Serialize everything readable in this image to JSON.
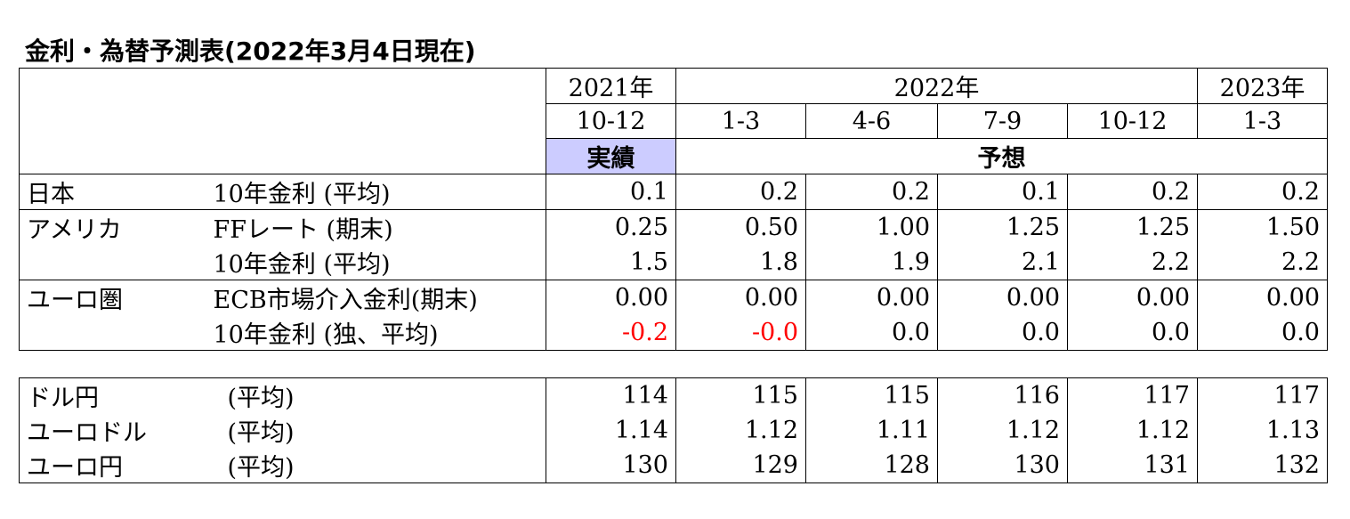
{
  "title": "金利・為替予測表(2022年3月4日現在)",
  "header": {
    "years": [
      {
        "label": "2021年",
        "span": 1
      },
      {
        "label": "2022年",
        "span": 4
      },
      {
        "label": "2023年",
        "span": 1
      }
    ],
    "quarters": [
      "10-12",
      "1-3",
      "4-6",
      "7-9",
      "10-12",
      "1-3"
    ],
    "actual_label": "実績",
    "forecast_label": "予想"
  },
  "rates": [
    {
      "region": "日本",
      "item": "10年金利 (平均)",
      "values": [
        "0.1",
        "0.2",
        "0.2",
        "0.1",
        "0.2",
        "0.2"
      ],
      "group_start": true
    },
    {
      "region": "アメリカ",
      "item": "FFレート (期末)",
      "values": [
        "0.25",
        "0.50",
        "1.00",
        "1.25",
        "1.25",
        "1.50"
      ],
      "group_start": true
    },
    {
      "region": "",
      "item": "10年金利 (平均)",
      "values": [
        "1.5",
        "1.8",
        "1.9",
        "2.1",
        "2.2",
        "2.2"
      ],
      "group_start": false
    },
    {
      "region": "ユーロ圏",
      "item": "ECB市場介入金利(期末)",
      "values": [
        "0.00",
        "0.00",
        "0.00",
        "0.00",
        "0.00",
        "0.00"
      ],
      "group_start": true
    },
    {
      "region": "",
      "item": "10年金利 (独、平均)",
      "values": [
        "-0.2",
        "-0.0",
        "0.0",
        "0.0",
        "0.0",
        "0.0"
      ],
      "group_start": false
    }
  ],
  "fx": [
    {
      "pair": "ドル円",
      "basis": "(平均)",
      "values": [
        "114",
        "115",
        "115",
        "116",
        "117",
        "117"
      ]
    },
    {
      "pair": "ユーロドル",
      "basis": "(平均)",
      "values": [
        "1.14",
        "1.12",
        "1.11",
        "1.12",
        "1.12",
        "1.13"
      ]
    },
    {
      "pair": "ユーロ円",
      "basis": "(平均)",
      "values": [
        "130",
        "129",
        "128",
        "130",
        "131",
        "132"
      ]
    }
  ],
  "colors": {
    "actual_bg": "#ccccff",
    "negative_text": "#ff0000"
  }
}
